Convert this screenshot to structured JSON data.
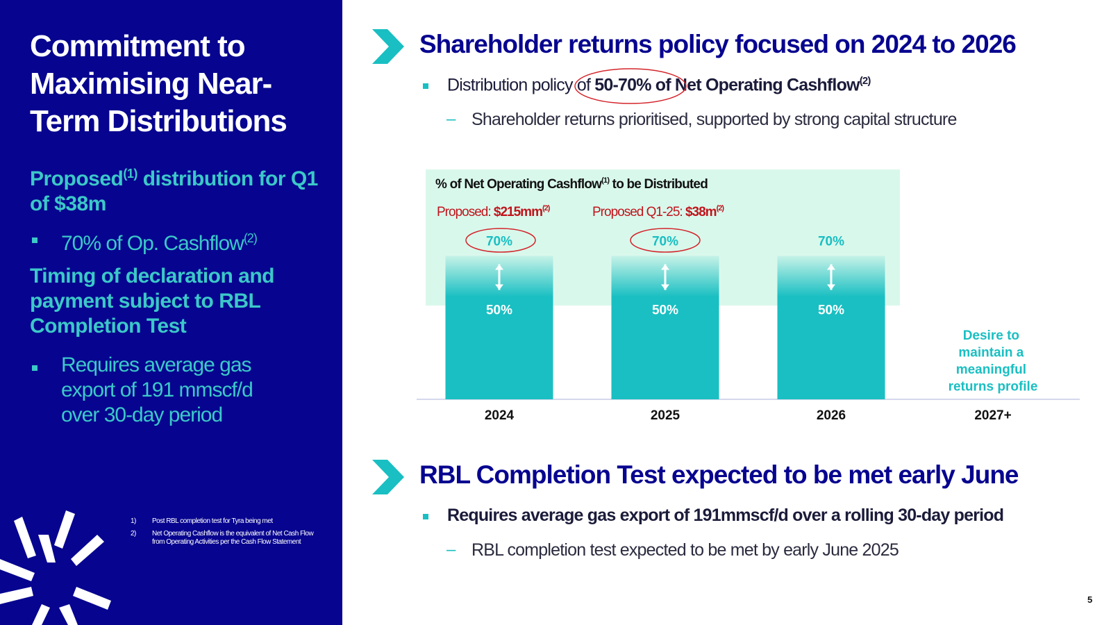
{
  "left": {
    "title": "Commitment to Maximising Near-Term Distributions",
    "heading1": {
      "start": "Proposed",
      "sup": "(1)",
      "end": " distribution for Q1 of $38m"
    },
    "bullet1": {
      "text": "70% of Op. Cashflow",
      "sup": "(2)"
    },
    "heading2": "Timing of declaration and payment subject to RBL Completion Test",
    "bullet2": "Requires average gas export of 191 mmscf/d over 30-day period",
    "footnotes": [
      {
        "num": "1)",
        "text": "Post RBL completion test for Tyra being met"
      },
      {
        "num": "2)",
        "text": "Net Operating Cashflow is the equivalent of Net Cash Flow from Operating Activities per the Cash Flow Statement"
      }
    ]
  },
  "section1": {
    "title": "Shareholder returns policy focused on 2024 to 2026",
    "bullet": {
      "start": "Distribution policy of ",
      "bold": "50-70% of Net Operating Cashflow",
      "sup": "(2)"
    },
    "sub": "Shareholder returns prioritised, supported by strong capital structure"
  },
  "chart_data": {
    "type": "range-bar",
    "title": {
      "start": "% of Net Operating Cashflow",
      "sup": "(1)",
      "end": " to be Distributed"
    },
    "categories": [
      "2024",
      "2025",
      "2026",
      "2027+"
    ],
    "values": [
      50,
      50,
      50,
      null
    ],
    "value_labels": [
      "50%",
      "50%",
      "50%",
      null
    ],
    "high_values": [
      70,
      70,
      70,
      null
    ],
    "high_labels": [
      "70%",
      "70%",
      "70%",
      null
    ],
    "color": "#19bfc2",
    "annotations": [
      {
        "start": "Proposed: ",
        "bold": "$215mm",
        "sup": "(2)"
      },
      {
        "start": "Proposed Q1-25: ",
        "bold": "$38m",
        "sup": "(2)"
      }
    ],
    "note": "Desire to maintain a meaningful returns profile"
  },
  "section2": {
    "title": "RBL Completion Test expected to be met early June",
    "bullet": "Requires average gas export of 191mmscf/d over a rolling 30-day period",
    "sub": "RBL completion test expected to be met by early June 2025"
  },
  "page_number": "5"
}
